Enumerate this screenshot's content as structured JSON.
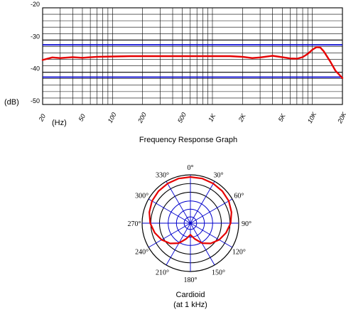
{
  "chart_data": [
    {
      "type": "line",
      "title": "Frequency Response Graph",
      "xlabel": "(Hz)",
      "ylabel": "(dB)",
      "x_scale": "log",
      "xlim": [
        20,
        20000
      ],
      "ylim": [
        -50,
        -20
      ],
      "x_ticks": [
        {
          "value": 20,
          "label": "20"
        },
        {
          "value": 50,
          "label": "50"
        },
        {
          "value": 100,
          "label": "100"
        },
        {
          "value": 200,
          "label": "200"
        },
        {
          "value": 500,
          "label": "500"
        },
        {
          "value": 1000,
          "label": "1K"
        },
        {
          "value": 2000,
          "label": "2K"
        },
        {
          "value": 5000,
          "label": "5K"
        },
        {
          "value": 10000,
          "label": "10K"
        },
        {
          "value": 20000,
          "label": "20K"
        }
      ],
      "y_ticks": [
        {
          "value": -20,
          "label": "-20"
        },
        {
          "value": -30,
          "label": "-30"
        },
        {
          "value": -40,
          "label": "-40"
        },
        {
          "value": -50,
          "label": "-50"
        }
      ],
      "reference_lines_db": [
        -31.5,
        -41.5
      ],
      "series": [
        {
          "color": "#e60000",
          "x": [
            20,
            25,
            30,
            40,
            50,
            70,
            100,
            150,
            200,
            300,
            500,
            700,
            1000,
            1500,
            2000,
            2500,
            3000,
            4000,
            5000,
            6000,
            7000,
            8000,
            9000,
            10000,
            11000,
            12000,
            13000,
            15000,
            17000,
            20000
          ],
          "y": [
            -36.2,
            -35.4,
            -35.6,
            -35.3,
            -35.5,
            -35.2,
            -35.1,
            -35.0,
            -35.0,
            -35.0,
            -35.0,
            -35.0,
            -35.0,
            -35.0,
            -35.2,
            -35.6,
            -35.4,
            -34.9,
            -35.3,
            -35.7,
            -35.8,
            -35.3,
            -34.3,
            -33.0,
            -32.2,
            -32.3,
            -33.5,
            -36.5,
            -39.5,
            -41.8
          ]
        }
      ],
      "grid": true,
      "legend": "none"
    },
    {
      "type": "polar",
      "title": "Cardioid",
      "subtitle": "(at 1 kHz)",
      "angle_labels": [
        "0°",
        "30°",
        "60°",
        "90°",
        "120°",
        "150°",
        "180°",
        "210°",
        "240°",
        "270°",
        "300°",
        "330°"
      ],
      "pattern": "cardioid",
      "angles_deg": [
        0,
        15,
        30,
        45,
        60,
        75,
        90,
        105,
        120,
        135,
        150,
        165,
        180,
        195,
        210,
        225,
        240,
        255,
        270,
        285,
        300,
        315,
        330,
        345
      ],
      "relative_radius": [
        1.0,
        1.0,
        0.99,
        0.98,
        0.96,
        0.92,
        0.87,
        0.8,
        0.72,
        0.62,
        0.5,
        0.35,
        0.25,
        0.35,
        0.5,
        0.62,
        0.72,
        0.8,
        0.87,
        0.92,
        0.96,
        0.98,
        0.99,
        1.0
      ],
      "color": "#e60000"
    }
  ]
}
